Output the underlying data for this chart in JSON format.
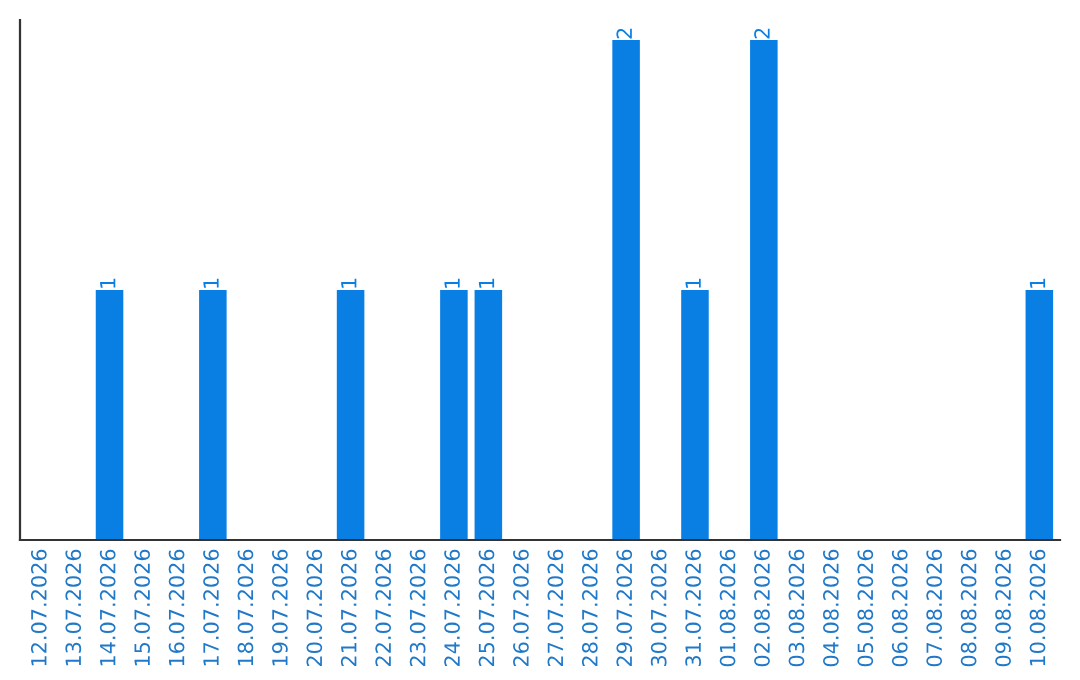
{
  "chart_data": {
    "type": "bar",
    "categories": [
      "12.07.2026",
      "13.07.2026",
      "14.07.2026",
      "15.07.2026",
      "16.07.2026",
      "17.07.2026",
      "18.07.2026",
      "19.07.2026",
      "20.07.2026",
      "21.07.2026",
      "22.07.2026",
      "23.07.2026",
      "24.07.2026",
      "25.07.2026",
      "26.07.2026",
      "27.07.2026",
      "28.07.2026",
      "29.07.2026",
      "30.07.2026",
      "31.07.2026",
      "01.08.2026",
      "02.08.2026",
      "03.08.2026",
      "04.08.2026",
      "05.08.2026",
      "06.08.2026",
      "07.08.2026",
      "08.08.2026",
      "09.08.2026",
      "10.08.2026"
    ],
    "values": [
      0,
      0,
      1,
      0,
      0,
      1,
      0,
      0,
      0,
      1,
      0,
      0,
      1,
      1,
      0,
      0,
      0,
      2,
      0,
      1,
      0,
      2,
      0,
      0,
      0,
      0,
      0,
      0,
      0,
      1
    ],
    "value_labels": [
      null,
      null,
      "1",
      null,
      null,
      "1",
      null,
      null,
      null,
      "1",
      null,
      null,
      "1",
      "1",
      null,
      null,
      null,
      "2",
      null,
      "1",
      null,
      "2",
      null,
      null,
      null,
      null,
      null,
      null,
      null,
      "1"
    ],
    "color": "#0a7fe3",
    "grid": false,
    "legend": false
  }
}
